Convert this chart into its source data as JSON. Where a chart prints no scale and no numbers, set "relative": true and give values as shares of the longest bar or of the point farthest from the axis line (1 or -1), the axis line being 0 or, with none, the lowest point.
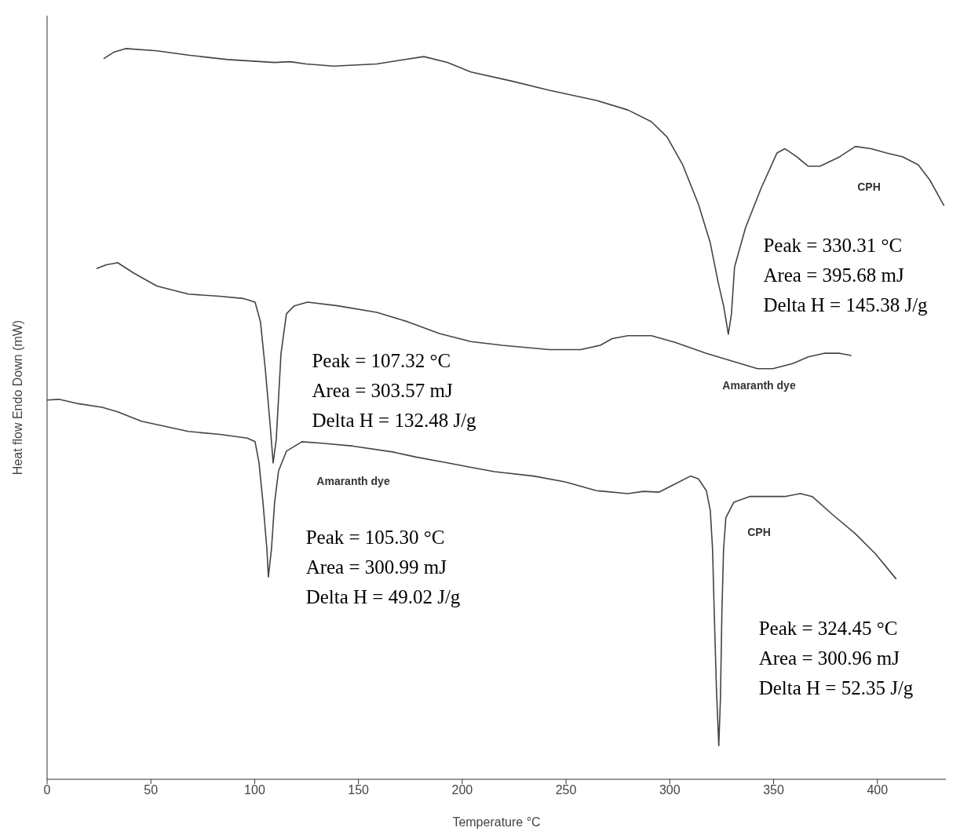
{
  "chart_data": {
    "type": "line",
    "relative": true,
    "xlabel": "Temperature °C",
    "ylabel": "Heat flow Endo Down  (mW)",
    "xlim": [
      0,
      433
    ],
    "xticks": [
      0,
      50,
      100,
      150,
      200,
      250,
      300,
      350,
      400
    ],
    "series": [
      {
        "color": "#444444",
        "x": [
          27.2,
          32.1,
          37.8,
          52.9,
          68.1,
          87.0,
          109.6,
          117.2,
          124.8,
          138.0,
          158.8,
          170.1,
          181.5,
          192.8,
          204.2,
          223.1,
          241.9,
          264.7,
          279.8,
          291.1,
          298.7,
          306.2,
          313.8,
          319.5,
          323.3,
          325.9,
          328.2,
          329.7,
          331.2,
          336.5,
          344.0,
          351.6,
          355.4,
          361.1,
          366.7,
          372.4,
          381.9,
          389.4,
          397.0,
          404.5,
          412.1,
          419.7,
          425.3,
          432.1
        ],
        "values": [
          0.986,
          0.995,
          1.0,
          0.997,
          0.991,
          0.985,
          0.981,
          0.982,
          0.979,
          0.976,
          0.979,
          0.984,
          0.989,
          0.981,
          0.968,
          0.956,
          0.943,
          0.929,
          0.916,
          0.9,
          0.879,
          0.841,
          0.787,
          0.734,
          0.68,
          0.648,
          0.609,
          0.637,
          0.701,
          0.755,
          0.809,
          0.857,
          0.863,
          0.852,
          0.839,
          0.839,
          0.852,
          0.866,
          0.863,
          0.857,
          0.852,
          0.841,
          0.82,
          0.785
        ]
      },
      {
        "color": "#444444",
        "x": [
          23.8,
          28.4,
          34.0,
          41.6,
          52.9,
          68.1,
          83.2,
          94.5,
          100.2,
          102.8,
          105.1,
          107.4,
          108.9,
          110.4,
          112.7,
          115.3,
          119.1,
          125.5,
          139.9,
          158.8,
          173.9,
          189.0,
          204.2,
          219.3,
          242.0,
          257.1,
          266.5,
          272.2,
          279.8,
          291.1,
          302.5,
          317.6,
          332.7,
          342.2,
          349.7,
          359.2,
          366.7,
          374.3,
          381.9,
          387.5
        ],
        "values": [
          0.699,
          0.704,
          0.707,
          0.693,
          0.675,
          0.664,
          0.661,
          0.658,
          0.653,
          0.626,
          0.562,
          0.487,
          0.433,
          0.465,
          0.583,
          0.637,
          0.648,
          0.653,
          0.648,
          0.639,
          0.626,
          0.61,
          0.599,
          0.594,
          0.588,
          0.588,
          0.594,
          0.603,
          0.607,
          0.607,
          0.598,
          0.583,
          0.57,
          0.562,
          0.562,
          0.569,
          0.578,
          0.583,
          0.583,
          0.58
        ]
      },
      {
        "color": "#444444",
        "x": [
          0,
          5.7,
          15.1,
          26.5,
          34.0,
          45.4,
          68.1,
          83.2,
          96.4,
          100.2,
          102.1,
          104.0,
          105.9,
          106.6,
          108.1,
          109.6,
          111.5,
          115.3,
          122.8,
          132.3,
          147.4,
          166.4,
          177.7,
          192.8,
          204.2,
          215.5,
          234.4,
          249.5,
          264.7,
          279.8,
          287.3,
          294.9,
          302.5,
          310.0,
          313.8,
          317.6,
          319.5,
          320.6,
          321.4,
          322.5,
          323.6,
          324.4,
          325.1,
          325.9,
          327.0,
          330.8,
          338.4,
          346.0,
          355.4,
          363.0,
          368.6,
          378.1,
          389.4,
          398.9,
          409.1
        ],
        "values": [
          0.519,
          0.52,
          0.514,
          0.509,
          0.503,
          0.49,
          0.476,
          0.472,
          0.467,
          0.462,
          0.433,
          0.379,
          0.315,
          0.277,
          0.315,
          0.379,
          0.422,
          0.449,
          0.462,
          0.46,
          0.456,
          0.448,
          0.441,
          0.433,
          0.427,
          0.421,
          0.415,
          0.407,
          0.395,
          0.391,
          0.394,
          0.393,
          0.404,
          0.415,
          0.411,
          0.395,
          0.368,
          0.315,
          0.229,
          0.121,
          0.046,
          0.111,
          0.229,
          0.315,
          0.358,
          0.379,
          0.387,
          0.387,
          0.387,
          0.391,
          0.387,
          0.363,
          0.336,
          0.309,
          0.274
        ]
      }
    ],
    "annotations": [
      "CPH",
      "Peak = 330.31 °C\nArea = 395.68 mJ\nDelta H = 145.38 J/g",
      "Peak = 107.32 °C\nArea = 303.57 mJ\nDelta H = 132.48 J/g",
      "Amaranth dye",
      "Amaranth dye",
      "Peak = 105.30 °C\nArea = 300.99 mJ\nDelta H = 49.02 J/g",
      "CPH",
      "Peak = 324.45 °C\nArea = 300.96 mJ\nDelta H = 52.35 J/g"
    ]
  }
}
